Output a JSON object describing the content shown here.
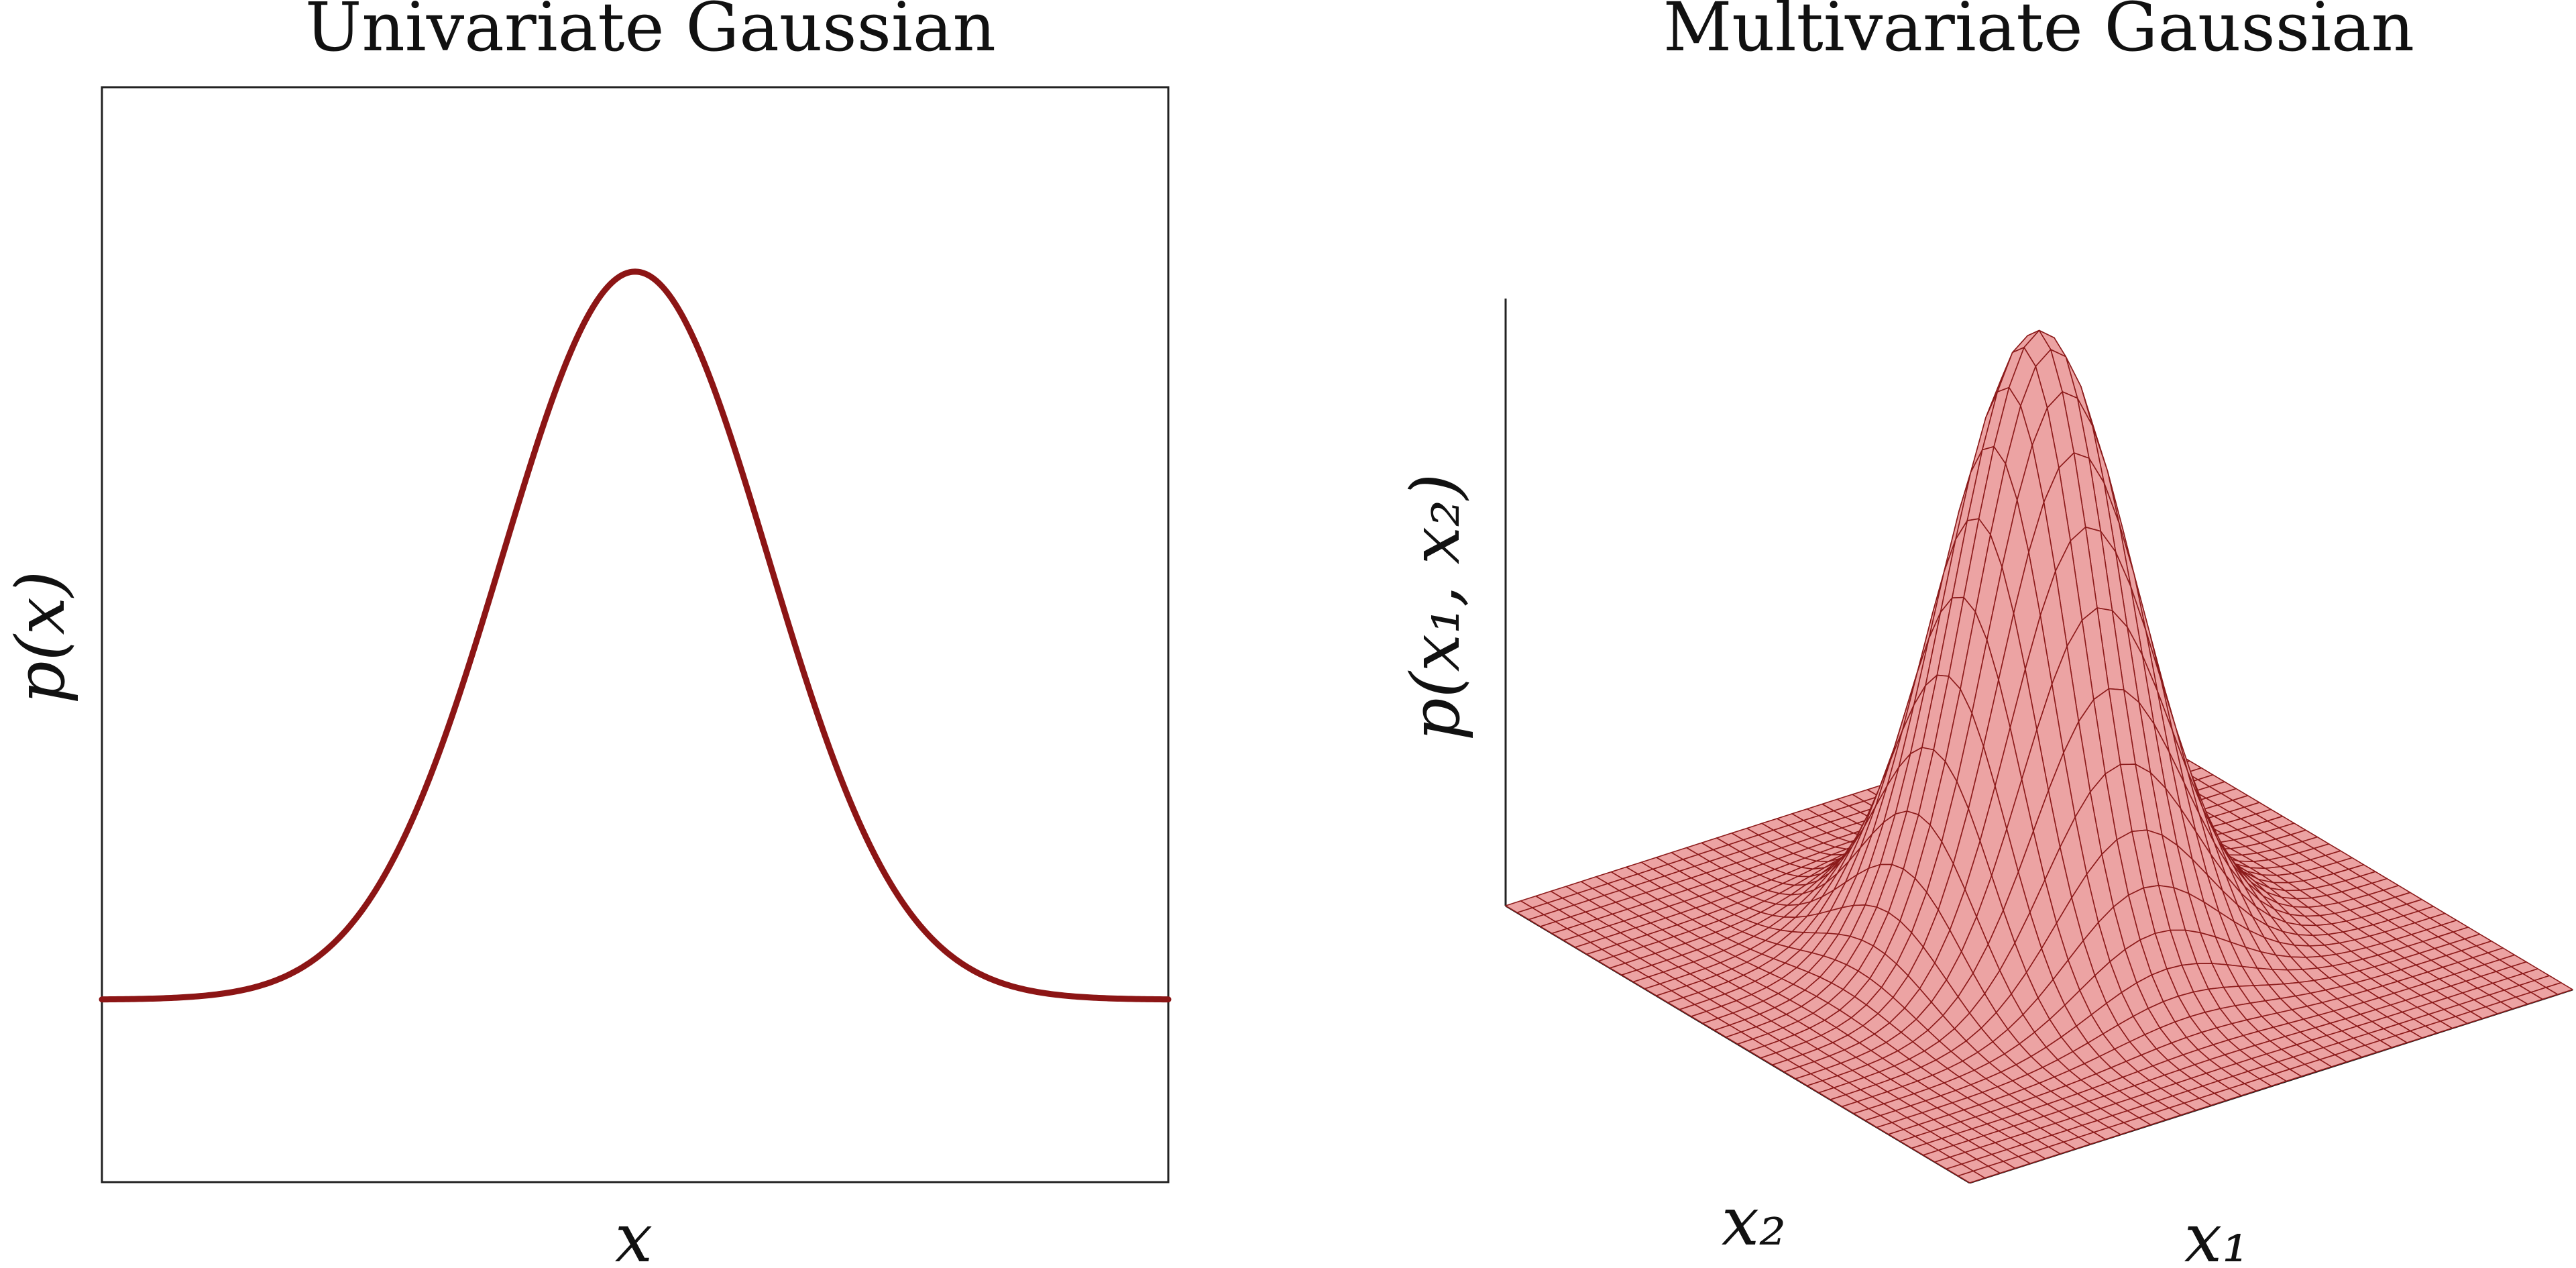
{
  "chart_data": [
    {
      "type": "line",
      "title": "Univariate Gaussian",
      "xlabel": "x",
      "ylabel": "p(x)",
      "xlim": [
        -4,
        4
      ],
      "ylim": [
        -0.1,
        0.5
      ],
      "grid": false,
      "series": [
        {
          "mean": 0,
          "std": 1,
          "color": "#8c1515"
        }
      ]
    },
    {
      "type": "surface",
      "title": "Multivariate Gaussian",
      "xlabel": "x₁",
      "ylabel": "x₂",
      "zlabel": "p(x₁, x₂)",
      "xlim": [
        -4,
        4
      ],
      "ylim": [
        -4,
        4
      ],
      "grid": false,
      "surface": {
        "mean": [
          0,
          0
        ],
        "std": [
          1,
          1
        ],
        "mesh_lines": 40,
        "face_color": "#eca3a3",
        "edge_color": "#8c1a1a"
      }
    }
  ]
}
